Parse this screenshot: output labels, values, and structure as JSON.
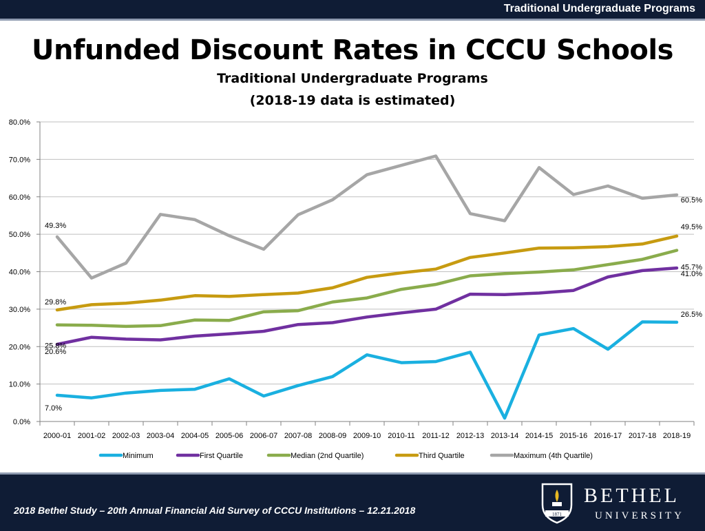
{
  "header": {
    "label": "Traditional Undergraduate Programs"
  },
  "title": "Unfunded Discount Rates in CCCU Schools",
  "subtitle_line1": "Traditional Undergraduate Programs",
  "subtitle_line2": "(2018-19 data is estimated)",
  "footer": {
    "text": "2018 Bethel Study – 20th Annual Financial Aid Survey of CCCU Institutions – 12.21.2018",
    "brand_name": "BETHEL",
    "brand_sub": "UNIVERSITY",
    "crest_year": "1871"
  },
  "chart_data": {
    "type": "line",
    "categories": [
      "2000-01",
      "2001-02",
      "2002-03",
      "2003-04",
      "2004-05",
      "2005-06",
      "2006-07",
      "2007-08",
      "2008-09",
      "2009-10",
      "2010-11",
      "2011-12",
      "2012-13",
      "2013-14",
      "2014-15",
      "2015-16",
      "2016-17",
      "2017-18",
      "2018-19"
    ],
    "ylim": [
      0,
      80
    ],
    "yticks": [
      "0.0%",
      "10.0%",
      "20.0%",
      "30.0%",
      "40.0%",
      "50.0%",
      "60.0%",
      "70.0%",
      "80.0%"
    ],
    "grid": true,
    "legend_position": "bottom",
    "series": [
      {
        "name": "Minimum",
        "color": "#1ab0e0",
        "values": [
          7.0,
          6.3,
          7.6,
          8.3,
          8.6,
          11.4,
          6.8,
          9.6,
          12.0,
          17.8,
          15.7,
          16.0,
          18.5,
          0.9,
          23.1,
          24.8,
          19.3,
          26.6,
          26.5
        ],
        "label_first": "7.0%",
        "label_last": "26.5%"
      },
      {
        "name": "First Quartile",
        "color": "#7030a0",
        "values": [
          20.6,
          22.5,
          22.0,
          21.8,
          22.8,
          23.4,
          24.1,
          25.9,
          26.4,
          27.9,
          29.0,
          30.0,
          34.0,
          33.9,
          34.3,
          35.0,
          38.6,
          40.3,
          41.0
        ],
        "label_first": "20.6%",
        "label_last": "41.0%"
      },
      {
        "name": "Median (2nd Quartile)",
        "color": "#8aac4c",
        "values": [
          25.8,
          25.7,
          25.4,
          25.6,
          27.1,
          27.0,
          29.3,
          29.6,
          31.9,
          33.0,
          35.3,
          36.6,
          38.9,
          39.5,
          39.9,
          40.5,
          41.9,
          43.3,
          45.7
        ],
        "label_first": "25.8%",
        "label_last": "45.7%"
      },
      {
        "name": "Third Quartile",
        "color": "#c79b11",
        "values": [
          29.8,
          31.2,
          31.6,
          32.4,
          33.6,
          33.4,
          33.9,
          34.3,
          35.7,
          38.5,
          39.7,
          40.7,
          43.8,
          45.0,
          46.3,
          46.4,
          46.7,
          47.4,
          49.5
        ],
        "label_first": "29.8%",
        "label_last": "49.5%"
      },
      {
        "name": "Maximum (4th Quartile)",
        "color": "#a6a6a6",
        "values": [
          49.3,
          38.3,
          42.3,
          55.3,
          53.9,
          49.6,
          46.0,
          55.2,
          59.2,
          65.9,
          68.4,
          70.9,
          55.5,
          53.6,
          67.8,
          60.6,
          62.9,
          59.6,
          60.5
        ],
        "label_first": "49.3%",
        "label_last": "60.5%"
      }
    ]
  }
}
